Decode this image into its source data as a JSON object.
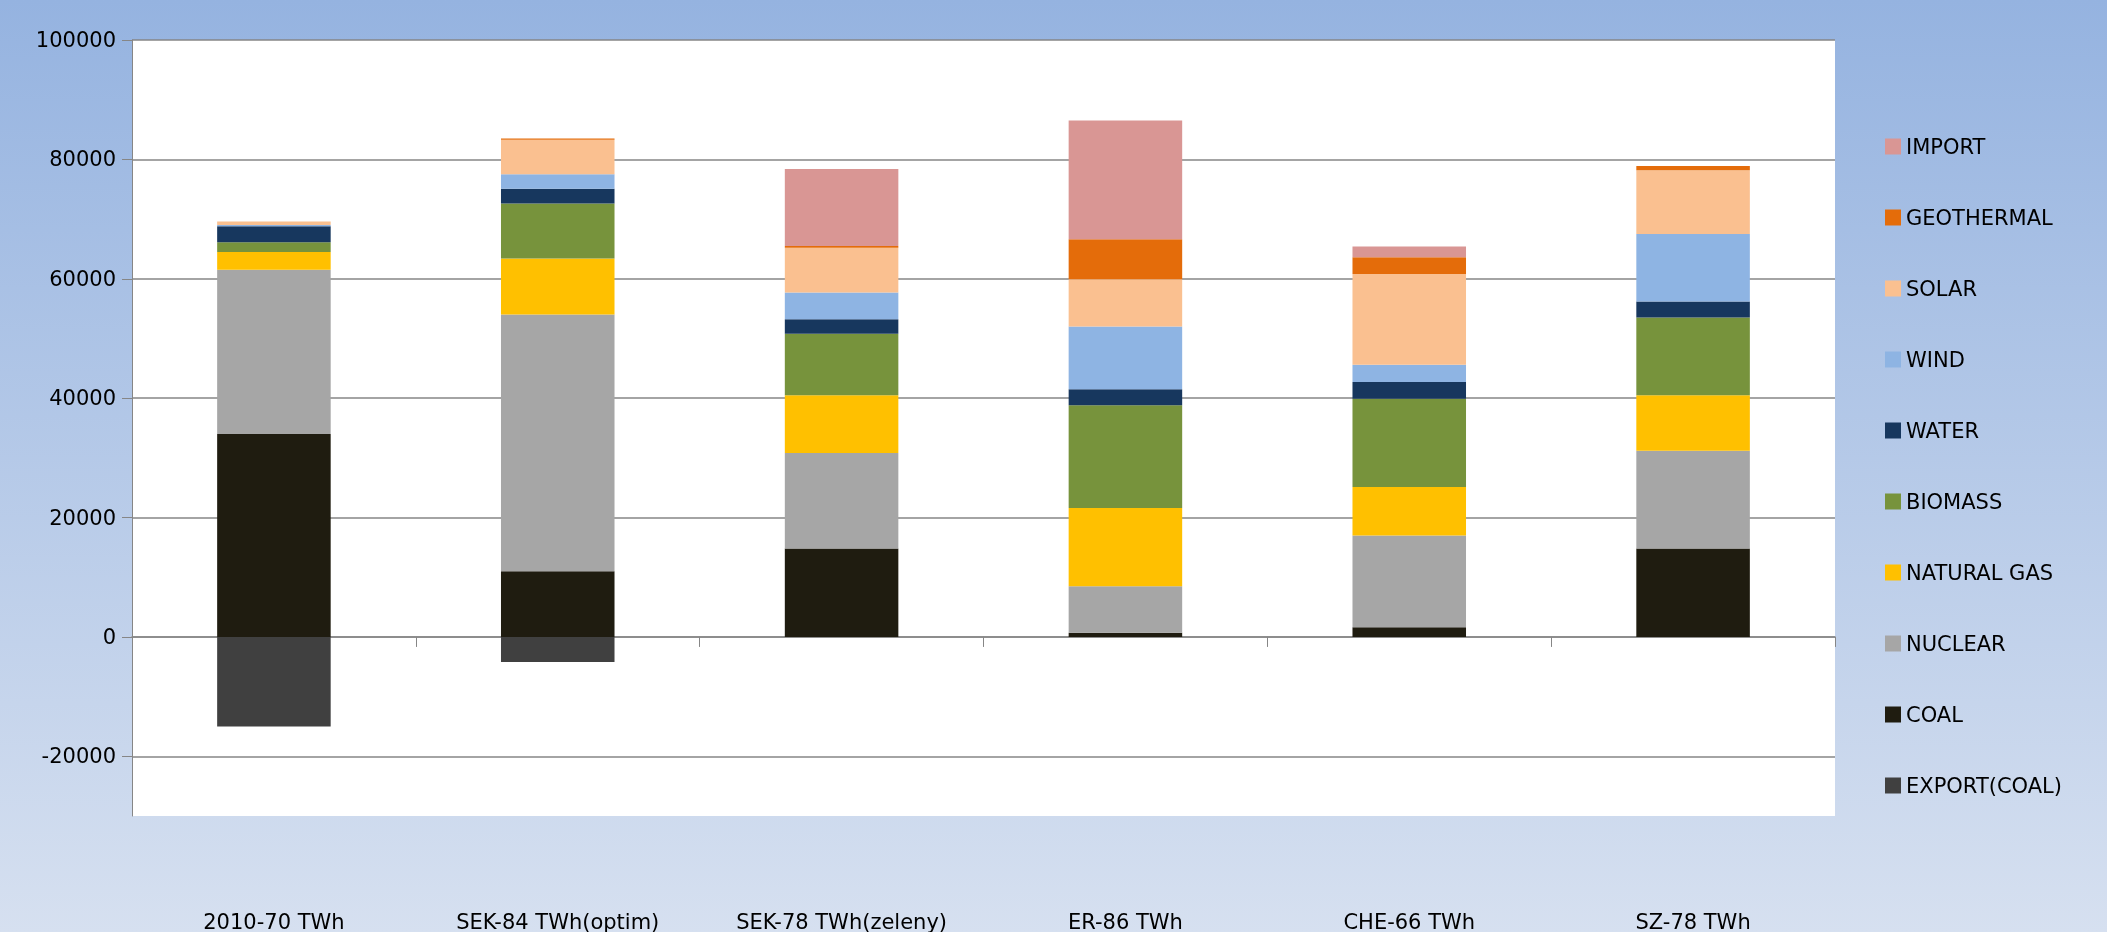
{
  "chart_data": {
    "type": "bar",
    "stacked": true,
    "legend": "right",
    "grid": "y",
    "categories": [
      "2010-70 TWh",
      "SEK-84 TWh(optim)",
      "SEK-78 TWh(zeleny)",
      "ER-86 TWh",
      "CHE-66 TWh",
      "SZ-78 TWh"
    ],
    "ylim": [
      -30000,
      100000
    ],
    "yticks": [
      -20000,
      0,
      20000,
      40000,
      60000,
      80000,
      100000
    ],
    "series": [
      {
        "name": "EXPORT(COAL)",
        "color": "#404040",
        "values": [
          -15000,
          -4200,
          null,
          null,
          null,
          null
        ]
      },
      {
        "name": "COAL",
        "color": "#1f1c10",
        "values": [
          34000,
          11000,
          14800,
          700,
          1600,
          14800
        ]
      },
      {
        "name": "NUCLEAR",
        "color": "#a6a6a6",
        "values": [
          27500,
          43000,
          16000,
          7800,
          15400,
          16400
        ]
      },
      {
        "name": "NATURAL GAS",
        "color": "#ffc000",
        "values": [
          3000,
          9400,
          9700,
          13100,
          8100,
          9300
        ]
      },
      {
        "name": "BIOMASS",
        "color": "#77933c",
        "values": [
          1600,
          9200,
          10300,
          17200,
          14800,
          13000
        ]
      },
      {
        "name": "WATER",
        "color": "#17375e",
        "values": [
          2700,
          2500,
          2400,
          2700,
          2800,
          2700
        ]
      },
      {
        "name": "WIND",
        "color": "#8eb4e3",
        "values": [
          200,
          2400,
          4500,
          10500,
          2900,
          11300
        ]
      },
      {
        "name": "SOLAR",
        "color": "#fac090",
        "values": [
          600,
          5800,
          7500,
          7900,
          15200,
          10700
        ]
      },
      {
        "name": "GEOTHERMAL",
        "color": "#e46c0a",
        "values": [
          null,
          200,
          300,
          6700,
          2800,
          700
        ]
      },
      {
        "name": "IMPORT",
        "color": "#d99694",
        "values": [
          null,
          null,
          12900,
          19900,
          1800,
          null
        ]
      }
    ]
  }
}
